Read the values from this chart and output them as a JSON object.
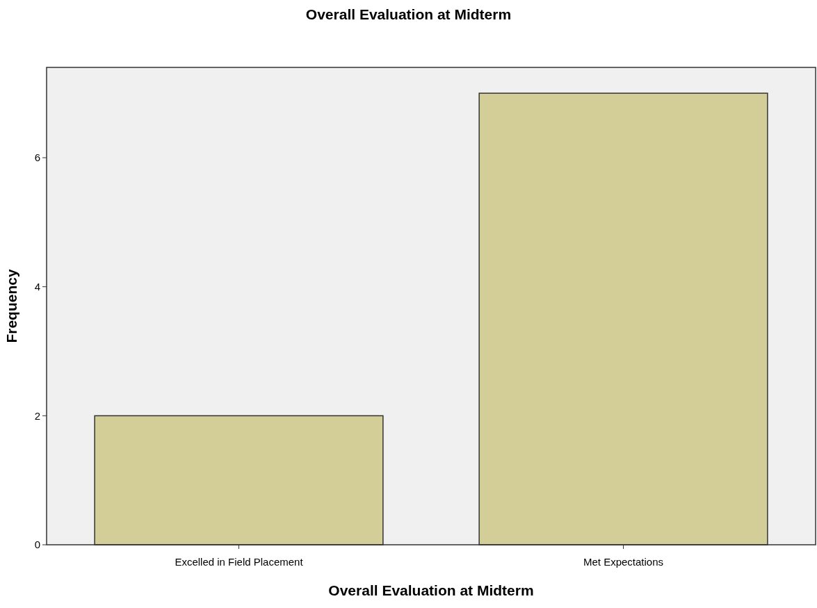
{
  "chart_data": {
    "type": "bar",
    "title": "Overall Evaluation at Midterm",
    "xlabel": "Overall Evaluation at Midterm",
    "ylabel": "Frequency",
    "categories": [
      "Excelled in Field Placement",
      "Met Expectations"
    ],
    "values": [
      2,
      7
    ],
    "color": "#d3cd98",
    "ylim": [
      0,
      7.4
    ],
    "yticks": [
      0,
      2,
      4,
      6
    ],
    "grid": false
  }
}
